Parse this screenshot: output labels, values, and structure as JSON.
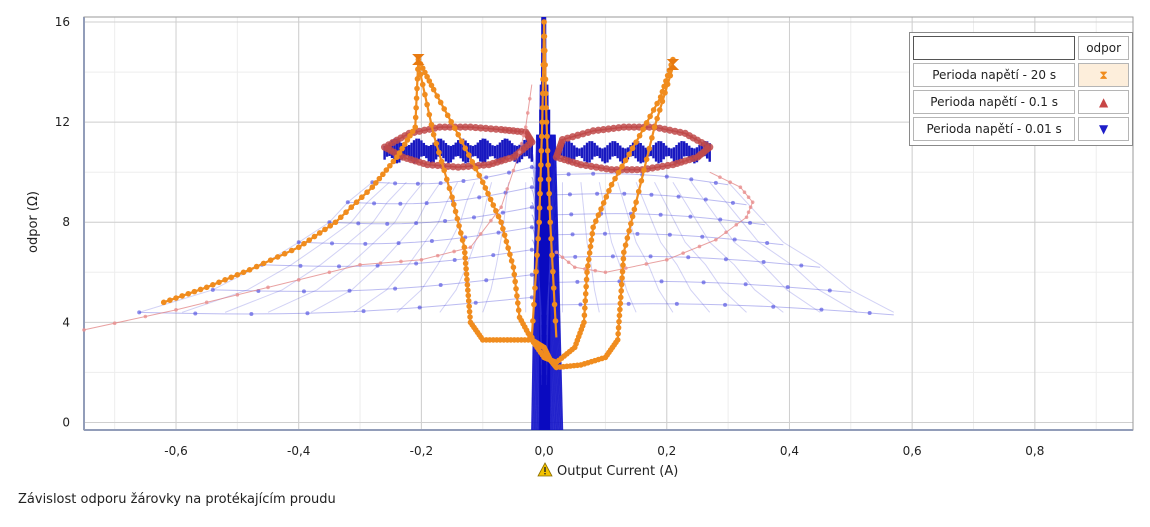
{
  "caption": "Závislost odporu žárovky na protékajícím proudu",
  "legend": {
    "header": "odpor",
    "rows": [
      {
        "name": "Perioda napětí - 20 s",
        "symbol": "⧗",
        "color": "#f08c1e"
      },
      {
        "name": "Perioda napětí - 0.1 s",
        "symbol": "▲",
        "color": "#c84646"
      },
      {
        "name": "Perioda napětí - 0.01 s",
        "symbol": "▼",
        "color": "#1e1ec8"
      }
    ]
  },
  "chart_data": {
    "type": "scatter",
    "xlabel": "Output Current (A)",
    "xlabel_icon": "warning-icon",
    "ylabel": "odpor (Ω)",
    "xlim": [
      -0.75,
      0.96
    ],
    "ylim": [
      -0.3,
      16.2
    ],
    "x_ticks": [
      "-0,6",
      "-0,4",
      "-0,2",
      "0,0",
      "0,2",
      "0,4",
      "0,6",
      "0,8"
    ],
    "x_tick_values": [
      -0.6,
      -0.4,
      -0.2,
      0.0,
      0.2,
      0.4,
      0.6,
      0.8
    ],
    "y_ticks": [
      "0",
      "4",
      "8",
      "12",
      "16"
    ],
    "y_tick_values": [
      0,
      4,
      8,
      12,
      16
    ],
    "grid": true,
    "legend_position": "top-right",
    "series": [
      {
        "name": "Perioda napětí - 20 s",
        "color": "#f08c1e",
        "paths": [
          [
            [
              -0.62,
              4.8
            ],
            [
              -0.55,
              5.4
            ],
            [
              -0.48,
              6.1
            ],
            [
              -0.4,
              7.0
            ],
            [
              -0.34,
              8.0
            ],
            [
              -0.28,
              9.4
            ],
            [
              -0.24,
              10.6
            ],
            [
              -0.21,
              11.8
            ],
            [
              -0.205,
              14.5
            ],
            [
              -0.18,
              13.3
            ],
            [
              -0.14,
              11.5
            ],
            [
              -0.1,
              9.6
            ],
            [
              -0.07,
              8.0
            ],
            [
              -0.05,
              6.2
            ],
            [
              -0.04,
              4.2
            ],
            [
              -0.02,
              3.3
            ],
            [
              0.0,
              3.0
            ],
            [
              0.01,
              2.5
            ],
            [
              0.02,
              2.2
            ],
            [
              0.06,
              2.3
            ],
            [
              0.1,
              2.6
            ],
            [
              0.12,
              3.3
            ],
            [
              0.125,
              5.0
            ],
            [
              0.13,
              6.8
            ],
            [
              0.15,
              8.8
            ],
            [
              0.18,
              11.8
            ],
            [
              0.21,
              14.2
            ]
          ],
          [
            [
              0.21,
              14.5
            ],
            [
              0.19,
              13.0
            ],
            [
              0.15,
              11.2
            ],
            [
              0.11,
              9.5
            ],
            [
              0.08,
              7.8
            ],
            [
              0.07,
              6.0
            ],
            [
              0.065,
              4.0
            ],
            [
              0.05,
              3.0
            ],
            [
              0.02,
              2.4
            ],
            [
              0.0,
              2.6
            ],
            [
              -0.02,
              3.3
            ],
            [
              -0.06,
              3.3
            ],
            [
              -0.1,
              3.3
            ],
            [
              -0.12,
              4.0
            ],
            [
              -0.125,
              5.5
            ],
            [
              -0.13,
              7.0
            ],
            [
              -0.15,
              9.0
            ],
            [
              -0.18,
              11.5
            ],
            [
              -0.205,
              14.3
            ]
          ],
          [
            [
              -0.02,
              3.4
            ],
            [
              -0.008,
              8.0
            ],
            [
              -0.003,
              12.0
            ],
            [
              0.0,
              16.0
            ],
            [
              0.004,
              12.0
            ],
            [
              0.01,
              8.0
            ],
            [
              0.02,
              3.4
            ]
          ]
        ]
      },
      {
        "name": "Perioda napětí - 0.1 s",
        "color": "#c84646",
        "paths": [
          [
            [
              -0.26,
              11.0
            ],
            [
              -0.22,
              11.55
            ],
            [
              -0.17,
              11.8
            ],
            [
              -0.12,
              11.8
            ],
            [
              -0.07,
              11.7
            ],
            [
              -0.03,
              11.6
            ],
            [
              -0.02,
              11.2
            ],
            [
              -0.05,
              10.6
            ],
            [
              -0.09,
              10.3
            ],
            [
              -0.14,
              10.2
            ],
            [
              -0.19,
              10.3
            ],
            [
              -0.23,
              10.6
            ],
            [
              -0.26,
              11.0
            ]
          ],
          [
            [
              0.27,
              11.0
            ],
            [
              0.23,
              11.55
            ],
            [
              0.18,
              11.8
            ],
            [
              0.13,
              11.8
            ],
            [
              0.08,
              11.65
            ],
            [
              0.03,
              11.3
            ],
            [
              0.02,
              10.6
            ],
            [
              0.06,
              10.3
            ],
            [
              0.11,
              10.1
            ],
            [
              0.16,
              10.1
            ],
            [
              0.21,
              10.3
            ],
            [
              0.25,
              10.6
            ],
            [
              0.27,
              11.0
            ]
          ],
          [
            [
              -0.75,
              3.7
            ],
            [
              -0.6,
              4.5
            ],
            [
              -0.45,
              5.4
            ],
            [
              -0.3,
              6.3
            ],
            [
              -0.2,
              6.5
            ],
            [
              -0.12,
              7.0
            ],
            [
              -0.07,
              8.6
            ],
            [
              -0.04,
              10.8
            ],
            [
              -0.03,
              11.8
            ],
            [
              -0.02,
              13.5
            ]
          ],
          [
            [
              0.02,
              6.8
            ],
            [
              0.05,
              6.2
            ],
            [
              0.1,
              6.0
            ],
            [
              0.2,
              6.5
            ],
            [
              0.28,
              7.3
            ],
            [
              0.33,
              8.2
            ],
            [
              0.34,
              8.8
            ],
            [
              0.32,
              9.4
            ],
            [
              0.27,
              10.0
            ]
          ]
        ]
      },
      {
        "name": "Perioda napětí - 0.01 s",
        "color": "#1e1ec8",
        "bands": [
          {
            "xmin": -0.26,
            "xmax": -0.02,
            "ymin": 10.5,
            "ymax": 11.2
          },
          {
            "xmin": 0.02,
            "xmax": 0.27,
            "ymin": 10.5,
            "ymax": 11.1
          }
        ],
        "center_spikes": {
          "xmin": -0.02,
          "xmax": 0.03,
          "ymin": -0.3,
          "ymax": 16.2
        },
        "fan_rows": [
          {
            "y": 9.6,
            "xl": -0.28,
            "xr": 0.3
          },
          {
            "y": 8.8,
            "xl": -0.32,
            "xr": 0.33
          },
          {
            "y": 8.0,
            "xl": -0.35,
            "xr": 0.36
          },
          {
            "y": 7.2,
            "xl": -0.4,
            "xr": 0.39
          },
          {
            "y": 6.3,
            "xl": -0.46,
            "xr": 0.45
          },
          {
            "y": 5.3,
            "xl": -0.54,
            "xr": 0.5
          },
          {
            "y": 4.4,
            "xl": -0.66,
            "xr": 0.57
          }
        ]
      }
    ]
  }
}
